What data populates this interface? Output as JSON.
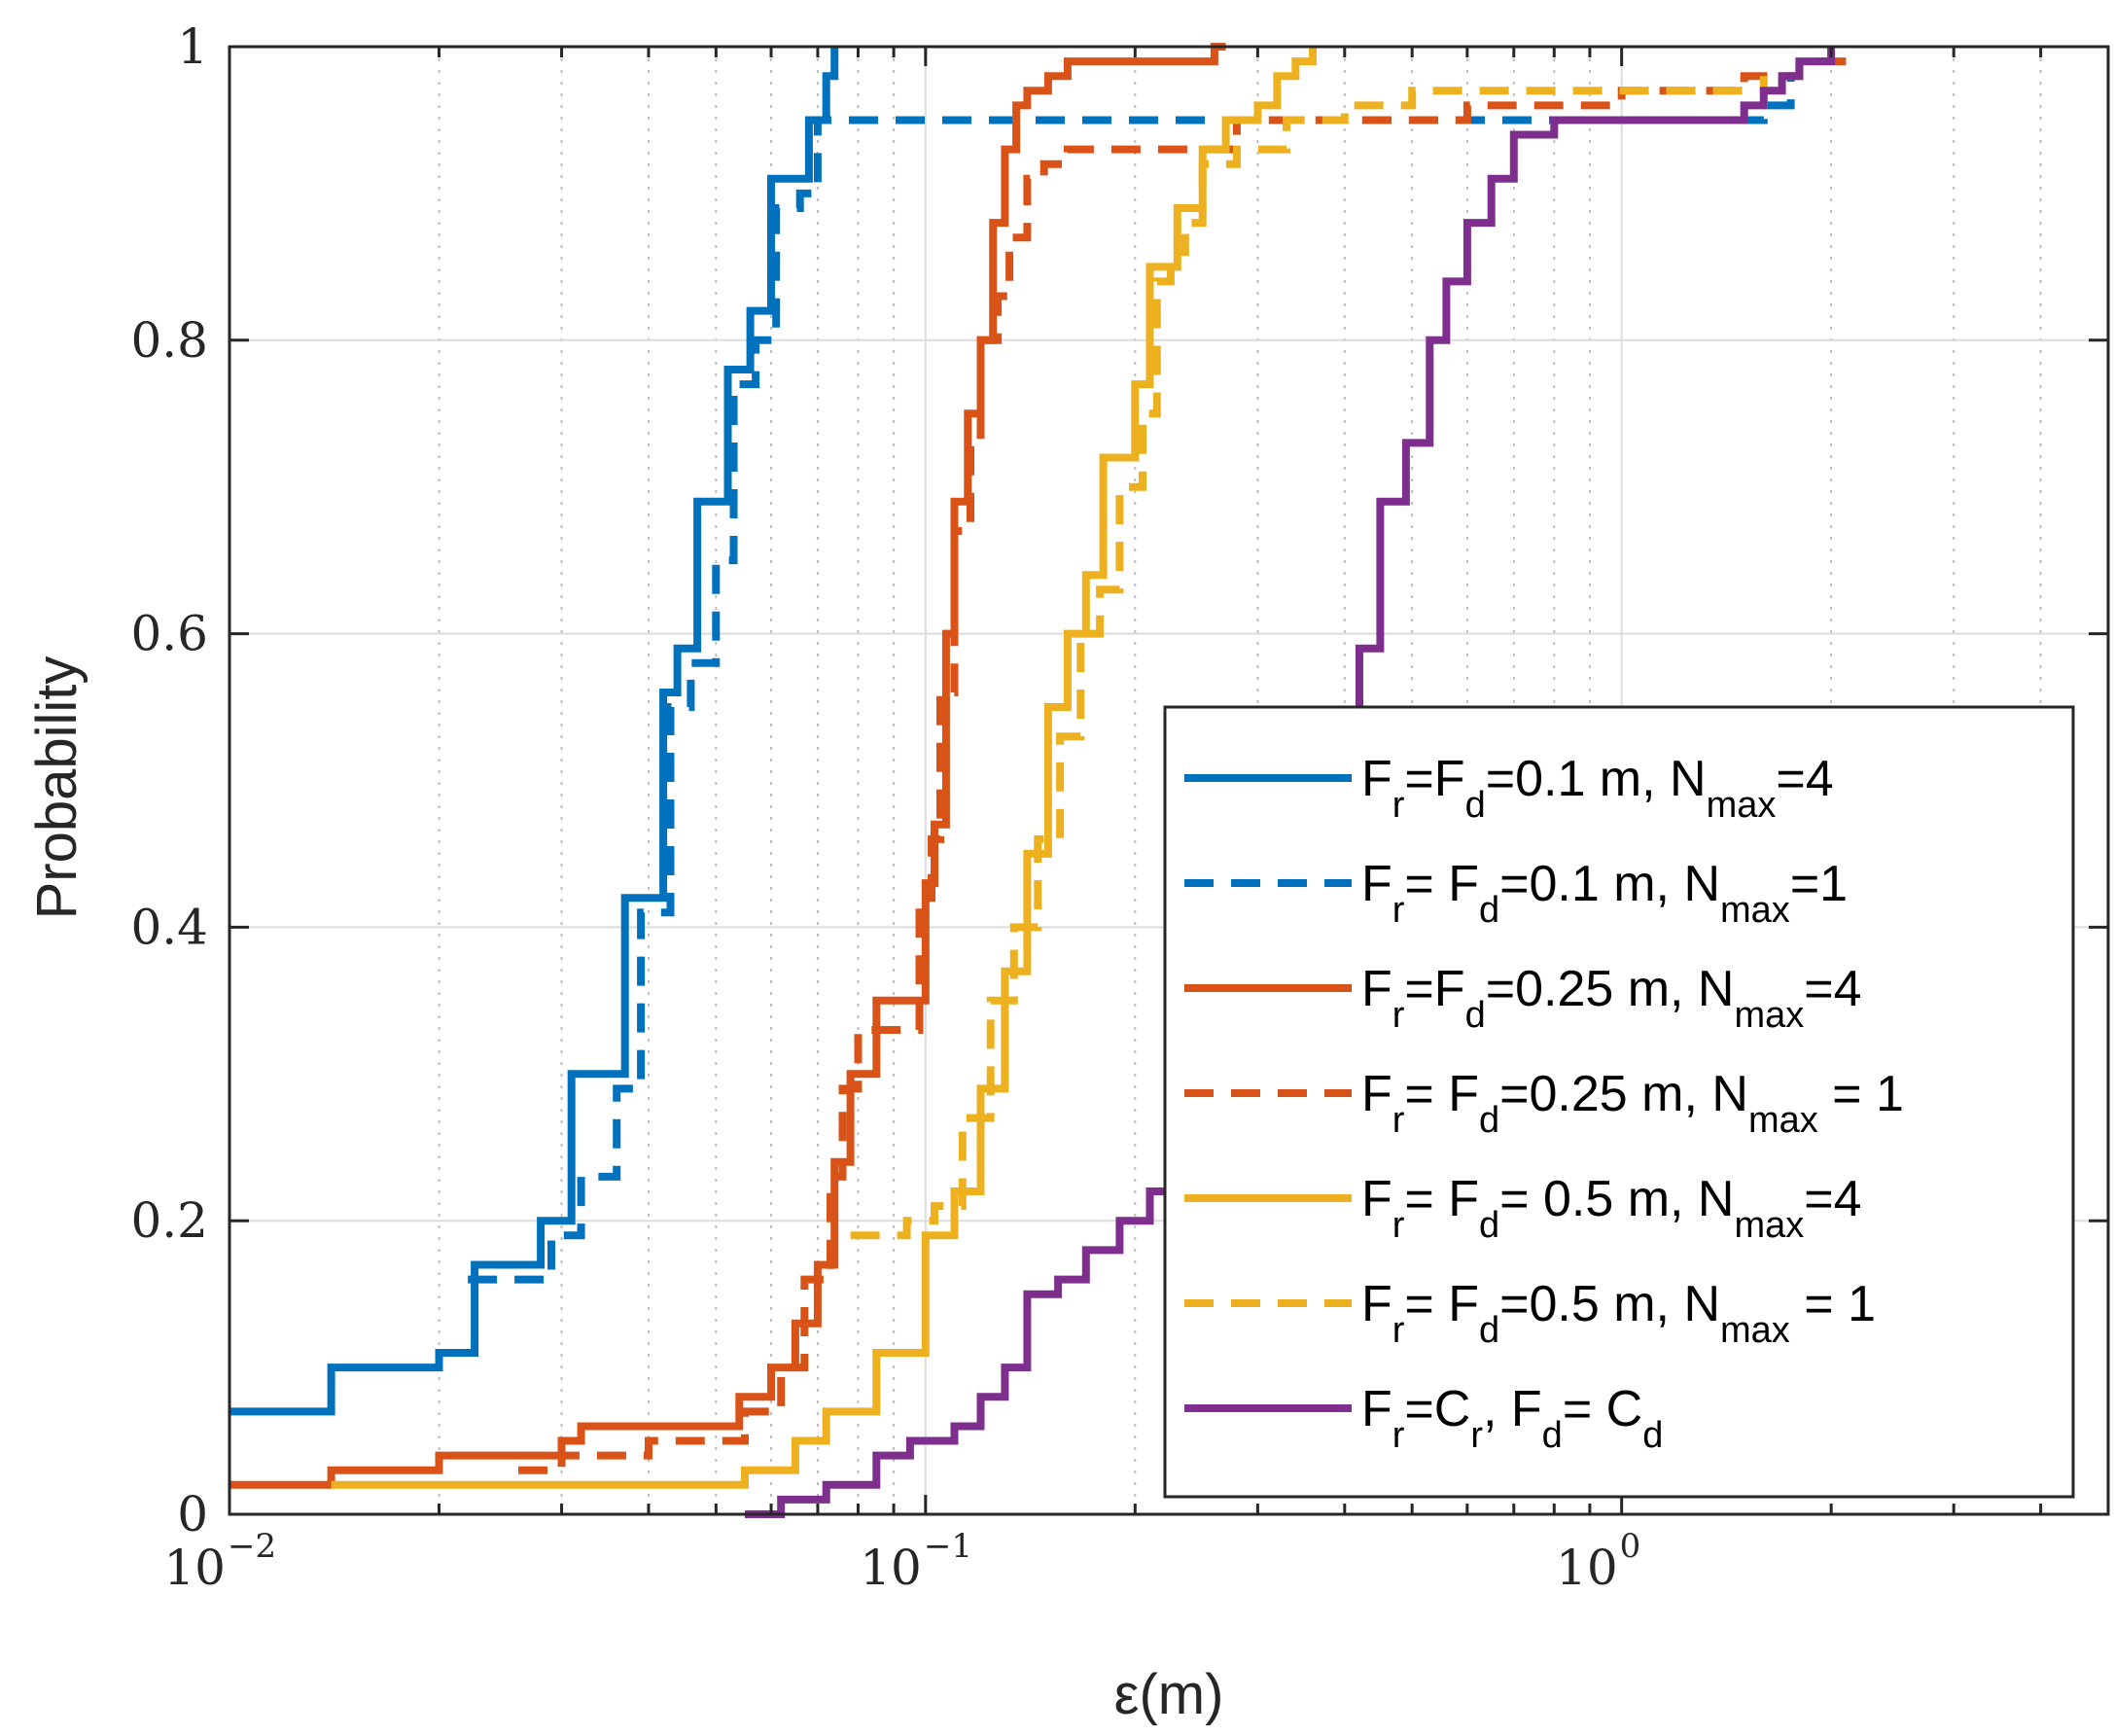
{
  "chart_data": {
    "type": "line",
    "subtype": "empirical-cdf-stairs",
    "title": "",
    "xlabel": "ε(m)",
    "ylabel": "Probability",
    "xscale": "log",
    "xlim": [
      0.01,
      5
    ],
    "ylim": [
      0,
      1
    ],
    "grid": true,
    "legend_position": "bottom-right",
    "x_ticks": [
      {
        "value": 0.01,
        "base": "10",
        "exp": "−2"
      },
      {
        "value": 0.1,
        "base": "10",
        "exp": "−1"
      },
      {
        "value": 1,
        "base": "10",
        "exp": "0"
      }
    ],
    "y_ticks": [
      {
        "value": 0,
        "label": "0"
      },
      {
        "value": 0.2,
        "label": "0.2"
      },
      {
        "value": 0.4,
        "label": "0.4"
      },
      {
        "value": 0.6,
        "label": "0.6"
      },
      {
        "value": 0.8,
        "label": "0.8"
      },
      {
        "value": 1,
        "label": "1"
      }
    ],
    "series": [
      {
        "name": "Fr=Fd=0.1 m, Nmax=4",
        "legend_parts": [
          [
            "F",
            ""
          ],
          [
            "r",
            "sub"
          ],
          [
            "=F",
            ""
          ],
          [
            "d",
            "sub"
          ],
          [
            "=0.1 m, N",
            ""
          ],
          [
            "max",
            "sub"
          ],
          [
            "=4",
            ""
          ]
        ],
        "color": "#0072BD",
        "dash": "solid",
        "x": [
          0.01,
          0.014,
          0.02,
          0.0225,
          0.028,
          0.031,
          0.034,
          0.037,
          0.04,
          0.042,
          0.044,
          0.047,
          0.05,
          0.052,
          0.056,
          0.06,
          0.065,
          0.068,
          0.072,
          0.074
        ],
        "y": [
          0.07,
          0.1,
          0.11,
          0.17,
          0.2,
          0.3,
          0.3,
          0.42,
          0.42,
          0.56,
          0.59,
          0.69,
          0.69,
          0.78,
          0.82,
          0.91,
          0.91,
          0.95,
          0.98,
          1.0
        ]
      },
      {
        "name": "Fr= Fd=0.1 m, Nmax=1",
        "legend_parts": [
          [
            "F",
            ""
          ],
          [
            "r",
            "sub"
          ],
          [
            "= F",
            ""
          ],
          [
            "d",
            "sub"
          ],
          [
            "=0.1 m, N",
            ""
          ],
          [
            "max",
            "sub"
          ],
          [
            "=1",
            ""
          ]
        ],
        "color": "#0072BD",
        "dash": "dashed",
        "x": [
          0.022,
          0.026,
          0.029,
          0.032,
          0.036,
          0.039,
          0.041,
          0.043,
          0.046,
          0.05,
          0.053,
          0.057,
          0.061,
          0.066,
          0.07,
          0.075,
          0.4,
          1.0,
          1.6,
          1.75
        ],
        "y": [
          0.16,
          0.16,
          0.19,
          0.23,
          0.29,
          0.41,
          0.41,
          0.55,
          0.58,
          0.65,
          0.77,
          0.8,
          0.89,
          0.9,
          0.95,
          0.95,
          0.95,
          0.95,
          0.96,
          0.98
        ]
      },
      {
        "name": "Fr=Fd=0.25 m, Nmax=4",
        "legend_parts": [
          [
            "F",
            ""
          ],
          [
            "r",
            "sub"
          ],
          [
            "=F",
            ""
          ],
          [
            "d",
            "sub"
          ],
          [
            "=0.25 m, N",
            ""
          ],
          [
            "max",
            "sub"
          ],
          [
            "=4",
            ""
          ]
        ],
        "color": "#D95319",
        "dash": "solid",
        "x": [
          0.01,
          0.014,
          0.02,
          0.023,
          0.03,
          0.032,
          0.04,
          0.05,
          0.054,
          0.06,
          0.065,
          0.07,
          0.074,
          0.078,
          0.085,
          0.09,
          0.095,
          0.1,
          0.103,
          0.107,
          0.11,
          0.115,
          0.12,
          0.125,
          0.13,
          0.135,
          0.14,
          0.15,
          0.16,
          0.2,
          0.26,
          0.27
        ],
        "y": [
          0.02,
          0.03,
          0.04,
          0.04,
          0.05,
          0.06,
          0.06,
          0.06,
          0.08,
          0.1,
          0.13,
          0.17,
          0.24,
          0.3,
          0.35,
          0.35,
          0.35,
          0.43,
          0.47,
          0.6,
          0.69,
          0.75,
          0.8,
          0.88,
          0.93,
          0.96,
          0.97,
          0.98,
          0.99,
          0.99,
          1.0,
          1.0
        ]
      },
      {
        "name": "Fr= Fd=0.25 m, Nmax = 1",
        "legend_parts": [
          [
            "F",
            ""
          ],
          [
            "r",
            "sub"
          ],
          [
            "= F",
            ""
          ],
          [
            "d",
            "sub"
          ],
          [
            "=0.25 m, N",
            ""
          ],
          [
            "max",
            "sub"
          ],
          [
            " = 1",
            ""
          ]
        ],
        "color": "#D95319",
        "dash": "dashed",
        "x": [
          0.026,
          0.03,
          0.04,
          0.05,
          0.055,
          0.062,
          0.067,
          0.073,
          0.076,
          0.08,
          0.09,
          0.098,
          0.102,
          0.105,
          0.11,
          0.116,
          0.12,
          0.127,
          0.132,
          0.14,
          0.148,
          0.16,
          0.2,
          0.28,
          0.4,
          0.6,
          1.0,
          1.5,
          1.8,
          2.2
        ],
        "y": [
          0.03,
          0.04,
          0.05,
          0.05,
          0.07,
          0.1,
          0.16,
          0.23,
          0.29,
          0.33,
          0.33,
          0.42,
          0.46,
          0.56,
          0.67,
          0.73,
          0.8,
          0.83,
          0.87,
          0.91,
          0.92,
          0.93,
          0.93,
          0.95,
          0.95,
          0.96,
          0.97,
          0.98,
          0.99,
          0.99
        ]
      },
      {
        "name": "Fr= Fd= 0.5 m, Nmax=4",
        "legend_parts": [
          [
            "F",
            ""
          ],
          [
            "r",
            "sub"
          ],
          [
            "= F",
            ""
          ],
          [
            "d",
            "sub"
          ],
          [
            "= 0.5 m, N",
            ""
          ],
          [
            "max",
            "sub"
          ],
          [
            "=4",
            ""
          ]
        ],
        "color": "#EDB120",
        "dash": "solid",
        "x": [
          0.014,
          0.02,
          0.03,
          0.04,
          0.055,
          0.065,
          0.072,
          0.085,
          0.092,
          0.1,
          0.11,
          0.12,
          0.13,
          0.14,
          0.15,
          0.16,
          0.17,
          0.18,
          0.2,
          0.21,
          0.22,
          0.23,
          0.25,
          0.27,
          0.3,
          0.32,
          0.34,
          0.36
        ],
        "y": [
          0.02,
          0.02,
          0.02,
          0.02,
          0.03,
          0.05,
          0.07,
          0.11,
          0.11,
          0.19,
          0.22,
          0.29,
          0.37,
          0.45,
          0.55,
          0.6,
          0.64,
          0.72,
          0.77,
          0.85,
          0.85,
          0.89,
          0.93,
          0.95,
          0.96,
          0.98,
          0.99,
          1.0
        ]
      },
      {
        "name": "Fr= Fd=0.5 m, Nmax = 1",
        "legend_parts": [
          [
            "F",
            ""
          ],
          [
            "r",
            "sub"
          ],
          [
            "= F",
            ""
          ],
          [
            "d",
            "sub"
          ],
          [
            "=0.5 m, N",
            ""
          ],
          [
            "max",
            "sub"
          ],
          [
            " = 1",
            ""
          ]
        ],
        "color": "#EDB120",
        "dash": "dashed",
        "x": [
          0.078,
          0.086,
          0.094,
          0.103,
          0.113,
          0.124,
          0.134,
          0.145,
          0.156,
          0.167,
          0.178,
          0.19,
          0.205,
          0.215,
          0.225,
          0.236,
          0.25,
          0.28,
          0.33,
          0.4,
          0.5,
          0.6,
          0.8,
          1.0,
          1.6
        ],
        "y": [
          0.19,
          0.19,
          0.2,
          0.21,
          0.27,
          0.35,
          0.4,
          0.46,
          0.53,
          0.6,
          0.63,
          0.7,
          0.75,
          0.84,
          0.86,
          0.88,
          0.92,
          0.93,
          0.95,
          0.96,
          0.97,
          0.97,
          0.97,
          0.97,
          0.98
        ]
      },
      {
        "name": "Fr=Cr, Fd= Cd",
        "legend_parts": [
          [
            "F",
            ""
          ],
          [
            "r",
            "sub"
          ],
          [
            "=C",
            ""
          ],
          [
            "r",
            "sub"
          ],
          [
            ", F",
            ""
          ],
          [
            "d",
            "sub"
          ],
          [
            "= C",
            ""
          ],
          [
            "d",
            "sub"
          ]
        ],
        "color": "#7E2F8E",
        "dash": "solid",
        "x": [
          0.055,
          0.062,
          0.072,
          0.085,
          0.095,
          0.11,
          0.12,
          0.13,
          0.14,
          0.155,
          0.17,
          0.19,
          0.21,
          0.23,
          0.26,
          0.3,
          0.35,
          0.4,
          0.42,
          0.45,
          0.49,
          0.53,
          0.56,
          0.6,
          0.65,
          0.7,
          0.8,
          1.0,
          1.35,
          1.5,
          1.6,
          1.7,
          1.8,
          2.0
        ],
        "y": [
          0.0,
          0.01,
          0.02,
          0.04,
          0.05,
          0.06,
          0.08,
          0.1,
          0.15,
          0.16,
          0.18,
          0.2,
          0.22,
          0.24,
          0.28,
          0.34,
          0.42,
          0.52,
          0.59,
          0.69,
          0.73,
          0.8,
          0.84,
          0.88,
          0.91,
          0.94,
          0.95,
          0.95,
          0.95,
          0.96,
          0.97,
          0.98,
          0.99,
          1.0
        ]
      }
    ]
  }
}
